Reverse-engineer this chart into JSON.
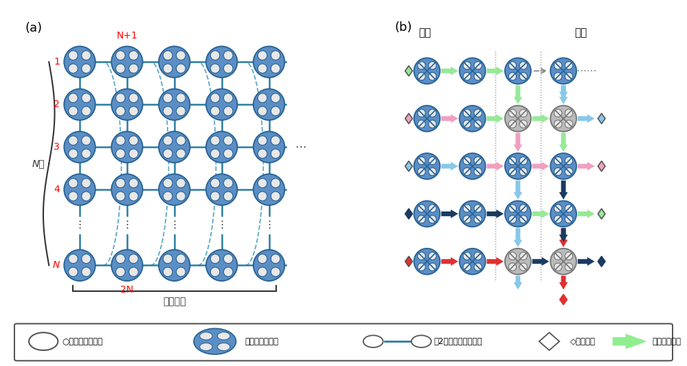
{
  "fig_width": 10.0,
  "fig_height": 5.33,
  "dpi": 100,
  "bg_color": "#ffffff",
  "node_blue": "#5b8ec5",
  "node_blue_border": "#2a6496",
  "node_gray_bg": "#b8b8b8",
  "node_gray_border": "#888888",
  "line_blue": "#2a7da0",
  "arc_dash_color": "#4aa0c0",
  "label_a": "(a)",
  "label_b": "(b)",
  "label_input": "入力",
  "label_output": "出力",
  "label_N_ko": "N個",
  "label_任意の数": "任意の数",
  "row_labels_a": [
    "1",
    "2",
    "3",
    "4",
    "...",
    "N"
  ],
  "col_label_N1": "N+1",
  "col_label_2N": "2N",
  "legend_1": "○：量子光パルス",
  "legend_2": "：マクロノード",
  "legend_3": "：2者間の量子もつれ",
  "legend_4": "◇：入出力",
  "legend_5": "：情報の流れ",
  "color_green": "#98e898",
  "color_pink": "#f0a0c0",
  "color_lightblue": "#88c8e8",
  "color_darkblue": "#1a3a60",
  "color_red": "#e03030",
  "color_arrow_green": "#90EE90",
  "color_arrow_blue": "#87ceeb"
}
